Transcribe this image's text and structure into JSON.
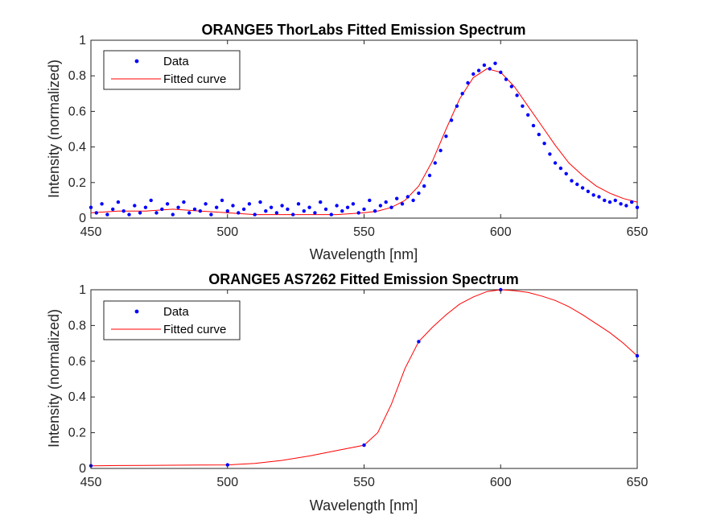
{
  "colors": {
    "data": "#0000ff",
    "fit": "#ff0000",
    "axes": "#262626",
    "background": "#ffffff"
  },
  "chart_data": [
    {
      "type": "scatter",
      "title": "ORANGE5 ThorLabs Fitted Emission Spectrum",
      "xlabel": "Wavelength [nm]",
      "ylabel": "Intensity (normalized)",
      "xlim": [
        450,
        650
      ],
      "ylim": [
        0,
        1
      ],
      "xticks": [
        "450",
        "500",
        "550",
        "600",
        "650"
      ],
      "yticks": [
        "0",
        "0.2",
        "0.4",
        "0.6",
        "0.8",
        "1"
      ],
      "grid": false,
      "legend_position": "top-left",
      "legend": [
        "Data",
        "Fitted curve"
      ],
      "series": [
        {
          "name": "Data",
          "style": "points",
          "x": [
            450,
            452,
            454,
            456,
            458,
            460,
            462,
            464,
            466,
            468,
            470,
            472,
            474,
            476,
            478,
            480,
            482,
            484,
            486,
            488,
            490,
            492,
            494,
            496,
            498,
            500,
            502,
            504,
            506,
            508,
            510,
            512,
            514,
            516,
            518,
            520,
            522,
            524,
            526,
            528,
            530,
            532,
            534,
            536,
            538,
            540,
            542,
            544,
            546,
            548,
            550,
            552,
            554,
            556,
            558,
            560,
            562,
            564,
            566,
            568,
            570,
            572,
            574,
            576,
            578,
            580,
            582,
            584,
            586,
            588,
            590,
            592,
            594,
            596,
            598,
            600,
            602,
            604,
            606,
            608,
            610,
            612,
            614,
            616,
            618,
            620,
            622,
            624,
            626,
            628,
            630,
            632,
            634,
            636,
            638,
            640,
            642,
            644,
            646,
            648,
            650
          ],
          "y": [
            0.06,
            0.03,
            0.08,
            0.02,
            0.05,
            0.09,
            0.04,
            0.02,
            0.07,
            0.03,
            0.06,
            0.1,
            0.03,
            0.05,
            0.08,
            0.02,
            0.06,
            0.09,
            0.03,
            0.05,
            0.04,
            0.08,
            0.02,
            0.06,
            0.1,
            0.04,
            0.07,
            0.03,
            0.05,
            0.08,
            0.02,
            0.09,
            0.04,
            0.06,
            0.03,
            0.07,
            0.05,
            0.02,
            0.08,
            0.04,
            0.06,
            0.03,
            0.09,
            0.05,
            0.02,
            0.07,
            0.04,
            0.06,
            0.08,
            0.03,
            0.05,
            0.1,
            0.04,
            0.07,
            0.09,
            0.06,
            0.11,
            0.08,
            0.12,
            0.1,
            0.14,
            0.18,
            0.24,
            0.31,
            0.38,
            0.46,
            0.55,
            0.63,
            0.7,
            0.76,
            0.81,
            0.83,
            0.86,
            0.84,
            0.87,
            0.82,
            0.78,
            0.74,
            0.69,
            0.63,
            0.58,
            0.52,
            0.47,
            0.42,
            0.36,
            0.31,
            0.28,
            0.25,
            0.21,
            0.19,
            0.17,
            0.15,
            0.13,
            0.12,
            0.1,
            0.09,
            0.1,
            0.08,
            0.07,
            0.09,
            0.06
          ]
        },
        {
          "name": "Fitted curve",
          "style": "line",
          "x": [
            450,
            460,
            470,
            480,
            490,
            500,
            510,
            520,
            530,
            540,
            550,
            555,
            560,
            565,
            570,
            575,
            580,
            585,
            590,
            595,
            600,
            605,
            610,
            615,
            620,
            625,
            630,
            635,
            640,
            645,
            650
          ],
          "y": [
            0.03,
            0.04,
            0.04,
            0.05,
            0.04,
            0.03,
            0.02,
            0.02,
            0.02,
            0.02,
            0.03,
            0.04,
            0.06,
            0.1,
            0.18,
            0.32,
            0.5,
            0.67,
            0.79,
            0.84,
            0.82,
            0.74,
            0.63,
            0.52,
            0.41,
            0.31,
            0.24,
            0.18,
            0.14,
            0.11,
            0.09
          ]
        }
      ]
    },
    {
      "type": "scatter",
      "title": "ORANGE5 AS7262 Fitted Emission Spectrum",
      "xlabel": "Wavelength [nm]",
      "ylabel": "Intensity (normalized)",
      "xlim": [
        450,
        650
      ],
      "ylim": [
        0,
        1
      ],
      "xticks": [
        "450",
        "500",
        "550",
        "600",
        "650"
      ],
      "yticks": [
        "0",
        "0.2",
        "0.4",
        "0.6",
        "0.8",
        "1"
      ],
      "grid": false,
      "legend_position": "top-left",
      "legend": [
        "Data",
        "Fitted curve"
      ],
      "series": [
        {
          "name": "Data",
          "style": "points",
          "x": [
            450,
            500,
            550,
            570,
            600,
            650
          ],
          "y": [
            0.015,
            0.02,
            0.13,
            0.71,
            1.0,
            0.63
          ]
        },
        {
          "name": "Fitted curve",
          "style": "line",
          "x": [
            450,
            460,
            470,
            480,
            490,
            500,
            510,
            520,
            530,
            540,
            550,
            555,
            560,
            565,
            570,
            575,
            580,
            585,
            590,
            595,
            600,
            605,
            610,
            615,
            620,
            625,
            630,
            635,
            640,
            645,
            650
          ],
          "y": [
            0.015,
            0.016,
            0.017,
            0.018,
            0.019,
            0.02,
            0.028,
            0.045,
            0.07,
            0.1,
            0.13,
            0.2,
            0.36,
            0.56,
            0.71,
            0.79,
            0.86,
            0.92,
            0.96,
            0.99,
            1.0,
            0.995,
            0.985,
            0.965,
            0.94,
            0.905,
            0.86,
            0.81,
            0.76,
            0.7,
            0.63
          ]
        }
      ]
    }
  ]
}
